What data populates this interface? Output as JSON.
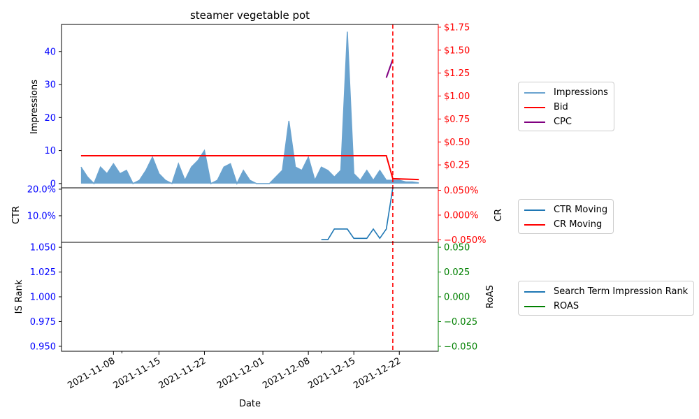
{
  "chart_data": [
    {
      "type": "area",
      "title": "steamer vegetable pot",
      "ylabel": "Impressions",
      "y2label": "",
      "ylim": [
        -1.3,
        48.2
      ],
      "yticks": [
        0,
        10,
        20,
        30,
        40
      ],
      "y2lim": [
        0.0,
        1.78
      ],
      "y2ticks": [
        0.25,
        0.5,
        0.75,
        1.0,
        1.25,
        1.5,
        1.75
      ],
      "y2ticklabels": [
        "$0.25",
        "$0.50",
        "$0.75",
        "$1.00",
        "$1.25",
        "$1.50",
        "$1.75"
      ],
      "series": [
        {
          "name": "Impressions",
          "color": "#1f77b4",
          "x": [
            "2021-11-03",
            "2021-11-04",
            "2021-11-05",
            "2021-11-06",
            "2021-11-07",
            "2021-11-08",
            "2021-11-09",
            "2021-11-10",
            "2021-11-11",
            "2021-11-12",
            "2021-11-13",
            "2021-11-14",
            "2021-11-15",
            "2021-11-16",
            "2021-11-17",
            "2021-11-18",
            "2021-11-19",
            "2021-11-20",
            "2021-11-21",
            "2021-11-22",
            "2021-11-23",
            "2021-11-24",
            "2021-11-25",
            "2021-11-26",
            "2021-11-27",
            "2021-11-28",
            "2021-11-29",
            "2021-11-30",
            "2021-12-01",
            "2021-12-02",
            "2021-12-03",
            "2021-12-04",
            "2021-12-05",
            "2021-12-06",
            "2021-12-07",
            "2021-12-08",
            "2021-12-09",
            "2021-12-10",
            "2021-12-11",
            "2021-12-12",
            "2021-12-13",
            "2021-12-14",
            "2021-12-15",
            "2021-12-16",
            "2021-12-17",
            "2021-12-18",
            "2021-12-19",
            "2021-12-20",
            "2021-12-21",
            "2021-12-22",
            "2021-12-23",
            "2021-12-24",
            "2021-12-25"
          ],
          "values": [
            5,
            2,
            0,
            5,
            3,
            6,
            3,
            4,
            0,
            1,
            4,
            8,
            3,
            1,
            0,
            6,
            1,
            5,
            7,
            10,
            0,
            1,
            5,
            6,
            0,
            4,
            1,
            0,
            0,
            0,
            2,
            4,
            19,
            5,
            4,
            8,
            1,
            5,
            4,
            2,
            4,
            46,
            3,
            1,
            4,
            1,
            4,
            1,
            1,
            1,
            0.5,
            0.5,
            0.2
          ]
        },
        {
          "name": "Bid",
          "color": "#ff0000",
          "axis": "right",
          "x": [
            "2021-11-03",
            "2021-12-20",
            "2021-12-21",
            "2021-12-25"
          ],
          "values": [
            0.35,
            0.35,
            0.1,
            0.09
          ]
        },
        {
          "name": "CPC",
          "color": "#800080",
          "axis": "right",
          "x": [
            "2021-12-20",
            "2021-12-21"
          ],
          "values": [
            1.2,
            1.4
          ]
        }
      ],
      "vline": {
        "x": "2021-12-21",
        "color": "#ff0000",
        "style": "dashed"
      }
    },
    {
      "type": "line",
      "ylabel": "CTR",
      "y2label": "CR",
      "ylim": [
        0.0,
        0.205
      ],
      "yticks": [
        0.1,
        0.2
      ],
      "yticklabels": [
        "10.0%",
        "20.0%"
      ],
      "y2lim": [
        -0.055,
        0.055
      ],
      "y2ticks": [
        -0.05,
        0.0,
        0.05
      ],
      "y2ticklabels": [
        "−0.050%",
        "0.000%",
        "0.050%"
      ],
      "series": [
        {
          "name": "CTR Moving",
          "color": "#1f77b4",
          "x": [
            "2021-12-10",
            "2021-12-11",
            "2021-12-12",
            "2021-12-13",
            "2021-12-14",
            "2021-12-15",
            "2021-12-16",
            "2021-12-17",
            "2021-12-18",
            "2021-12-19",
            "2021-12-20",
            "2021-12-21"
          ],
          "values": [
            0.01,
            0.01,
            0.05,
            0.05,
            0.05,
            0.015,
            0.015,
            0.015,
            0.05,
            0.015,
            0.05,
            0.21
          ]
        },
        {
          "name": "CR Moving",
          "color": "#ff0000",
          "axis": "right",
          "x": [],
          "values": []
        }
      ]
    },
    {
      "type": "line",
      "ylabel": "IS Rank",
      "y2label": "RoAS",
      "xlabel": "Date",
      "ylim": [
        0.945,
        1.055
      ],
      "yticks": [
        0.95,
        0.975,
        1.0,
        1.025,
        1.05
      ],
      "yticklabels": [
        "0.950",
        "0.975",
        "1.000",
        "1.025",
        "1.050"
      ],
      "y2lim": [
        -0.055,
        0.055
      ],
      "y2ticks": [
        -0.05,
        -0.025,
        0.0,
        0.025,
        0.05
      ],
      "y2ticklabels": [
        "−0.050",
        "−0.025",
        "0.000",
        "0.025",
        "0.050"
      ],
      "xticks": [
        "2021-11-08",
        "2021-11-15",
        "2021-11-22",
        "2021-12-01",
        "2021-12-08",
        "2021-12-15",
        "2021-12-22"
      ],
      "series": [
        {
          "name": "Search Term Impression Rank",
          "color": "#1f77b4",
          "x": [],
          "values": []
        },
        {
          "name": "ROAS",
          "color": "#008000",
          "axis": "right",
          "x": [],
          "values": []
        }
      ]
    }
  ],
  "legends": [
    {
      "items": [
        {
          "label": "Impressions",
          "color": "#6aa3cf"
        },
        {
          "label": "Bid",
          "color": "#ff0000"
        },
        {
          "label": "CPC",
          "color": "#800080"
        }
      ]
    },
    {
      "items": [
        {
          "label": "CTR Moving",
          "color": "#1f77b4"
        },
        {
          "label": "CR Moving",
          "color": "#ff0000"
        }
      ]
    },
    {
      "items": [
        {
          "label": "Search Term Impression Rank",
          "color": "#1f77b4"
        },
        {
          "label": "ROAS",
          "color": "#008000"
        }
      ]
    }
  ],
  "colors": {
    "left_axis": "#0000ff",
    "right_axis_top": "#ff0000",
    "right_axis_bottom": "#008000",
    "impressions_fill": "#6aa3cf"
  }
}
